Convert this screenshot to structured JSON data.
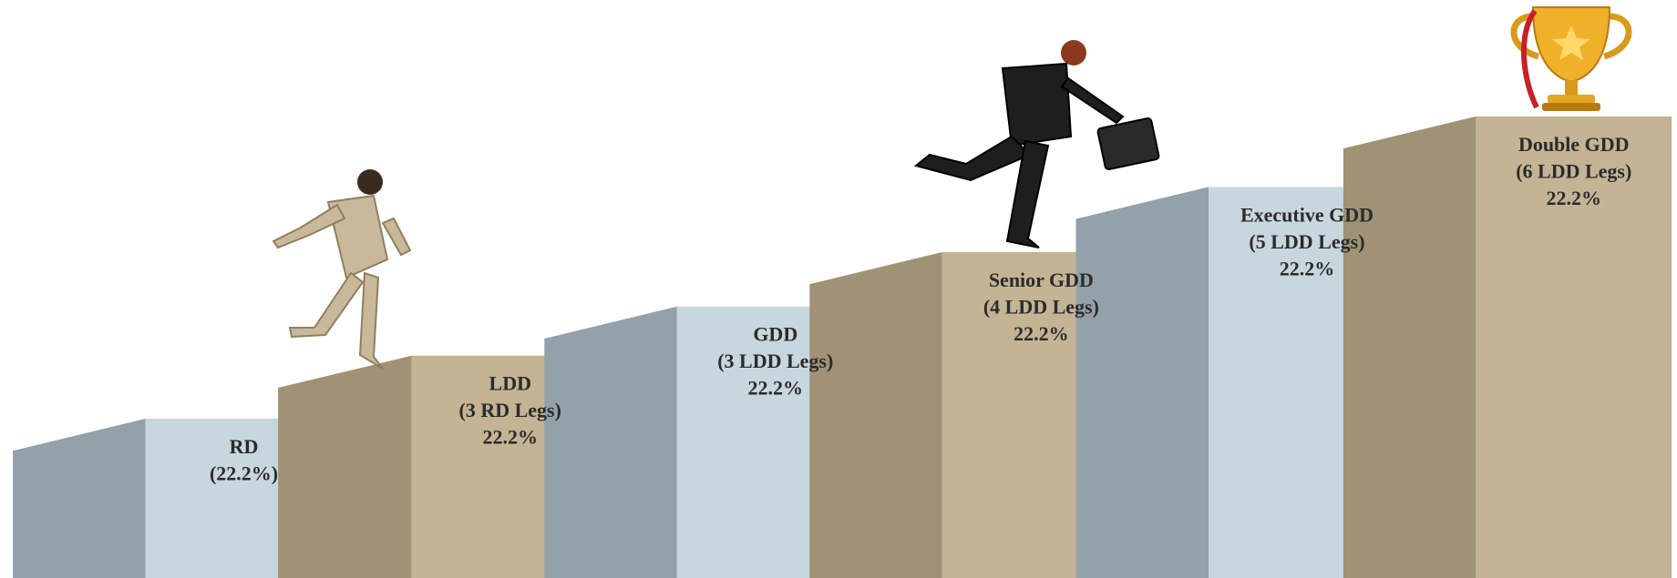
{
  "steps": [
    {
      "lines": [
        "RD",
        "(22.2%)"
      ]
    },
    {
      "lines": [
        "LDD",
        "(3 RD Legs)",
        "22.2%"
      ]
    },
    {
      "lines": [
        "GDD",
        "(3 LDD Legs)",
        "22.2%"
      ]
    },
    {
      "lines": [
        "Senior GDD",
        "(4 LDD Legs)",
        "22.2%"
      ]
    },
    {
      "lines": [
        "Executive GDD",
        "(5 LDD Legs)",
        "22.2%"
      ]
    },
    {
      "lines": [
        "Double GDD",
        "(6 LDD Legs)",
        "22.2%"
      ]
    }
  ]
}
